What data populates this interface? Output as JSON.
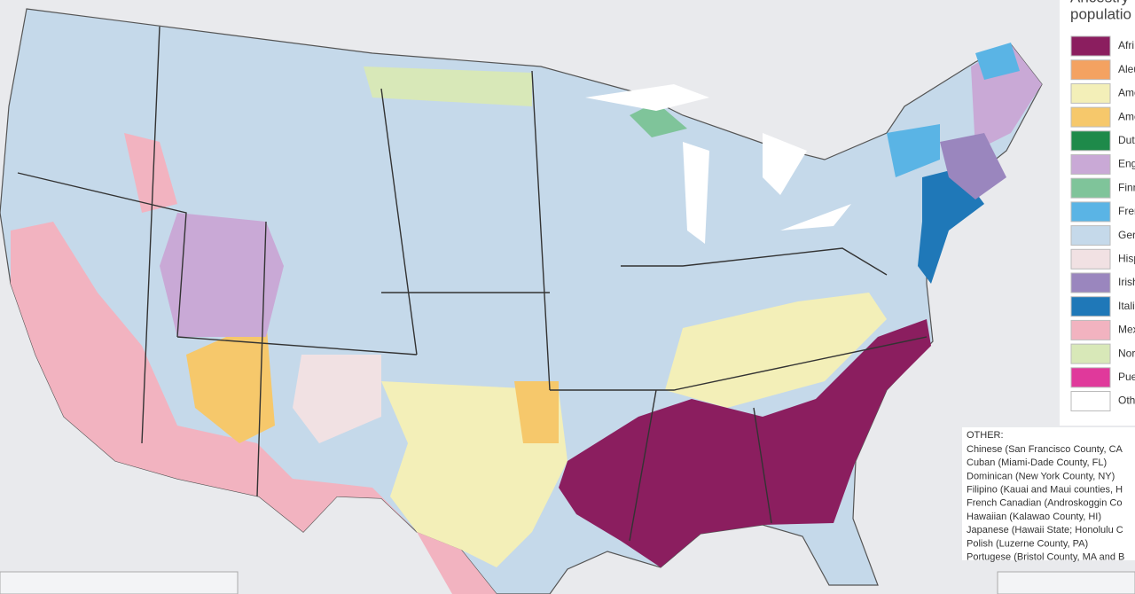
{
  "legend": {
    "title": [
      "Ancestry",
      "populatio"
    ],
    "items": [
      {
        "label": "Afri",
        "color": "#8b1e5f"
      },
      {
        "label": "Aleu",
        "color": "#f4a261"
      },
      {
        "label": "Ame",
        "color": "#f3efb8"
      },
      {
        "label": "Ame",
        "color": "#f6c86b"
      },
      {
        "label": "Dut",
        "color": "#1e8a4a"
      },
      {
        "label": "Eng",
        "color": "#c9a9d6"
      },
      {
        "label": "Finn",
        "color": "#7fc49a"
      },
      {
        "label": "Fren",
        "color": "#5ab4e5"
      },
      {
        "label": "Ger",
        "color": "#c5d9ea"
      },
      {
        "label": "Hisp",
        "color": "#f1e1e3"
      },
      {
        "label": "Irish",
        "color": "#9a86be"
      },
      {
        "label": "Itali",
        "color": "#1f78b8"
      },
      {
        "label": "Mex",
        "color": "#f2b3c0"
      },
      {
        "label": "Nor",
        "color": "#d8e8b8"
      },
      {
        "label": "Pue",
        "color": "#e0399b"
      },
      {
        "label": "Oth",
        "color": "#ffffff"
      }
    ]
  },
  "other": {
    "heading": "OTHER:",
    "items": [
      "Chinese (San Francisco County, CA",
      "Cuban (Miami-Dade County, FL)",
      "Dominican (New York County, NY)",
      "Filipino (Kauai and Maui counties, H",
      "French Canadian (Androskoggin Co",
      "Hawaiian (Kalawao County, HI)",
      "Japanese (Hawaii State; Honolulu C",
      "Polish (Luzerne County, PA)",
      "Portugese (Bristol County, MA and B"
    ]
  }
}
